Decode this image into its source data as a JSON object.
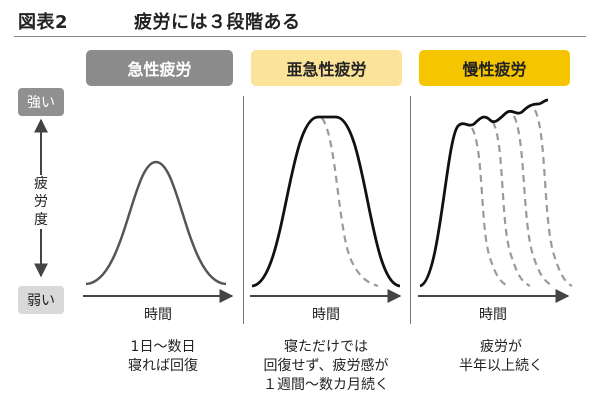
{
  "title": {
    "number": "図表2",
    "text": "疲労には３段階ある"
  },
  "phases": [
    {
      "label": "急性疲労"
    },
    {
      "label": "亜急性疲労"
    },
    {
      "label": "慢性疲労"
    }
  ],
  "y_axis": {
    "top": "強い",
    "label": "疲労度",
    "bottom": "弱い"
  },
  "x_axis_label": "時間",
  "descriptions": [
    [
      "1日〜数日",
      "寝れば回復"
    ],
    [
      "寝ただけでは",
      "回復せず、疲労感が",
      "１週間〜数カ月続く"
    ],
    [
      "疲労が",
      "半年以上続く"
    ]
  ],
  "colors": {
    "acute": "#8c8c8c",
    "subacute": "#fbe39a",
    "chronic": "#f5c600",
    "acute_curve": "#555555",
    "subacute_curve": "#111111",
    "dashed": "#9a9a9a"
  }
}
